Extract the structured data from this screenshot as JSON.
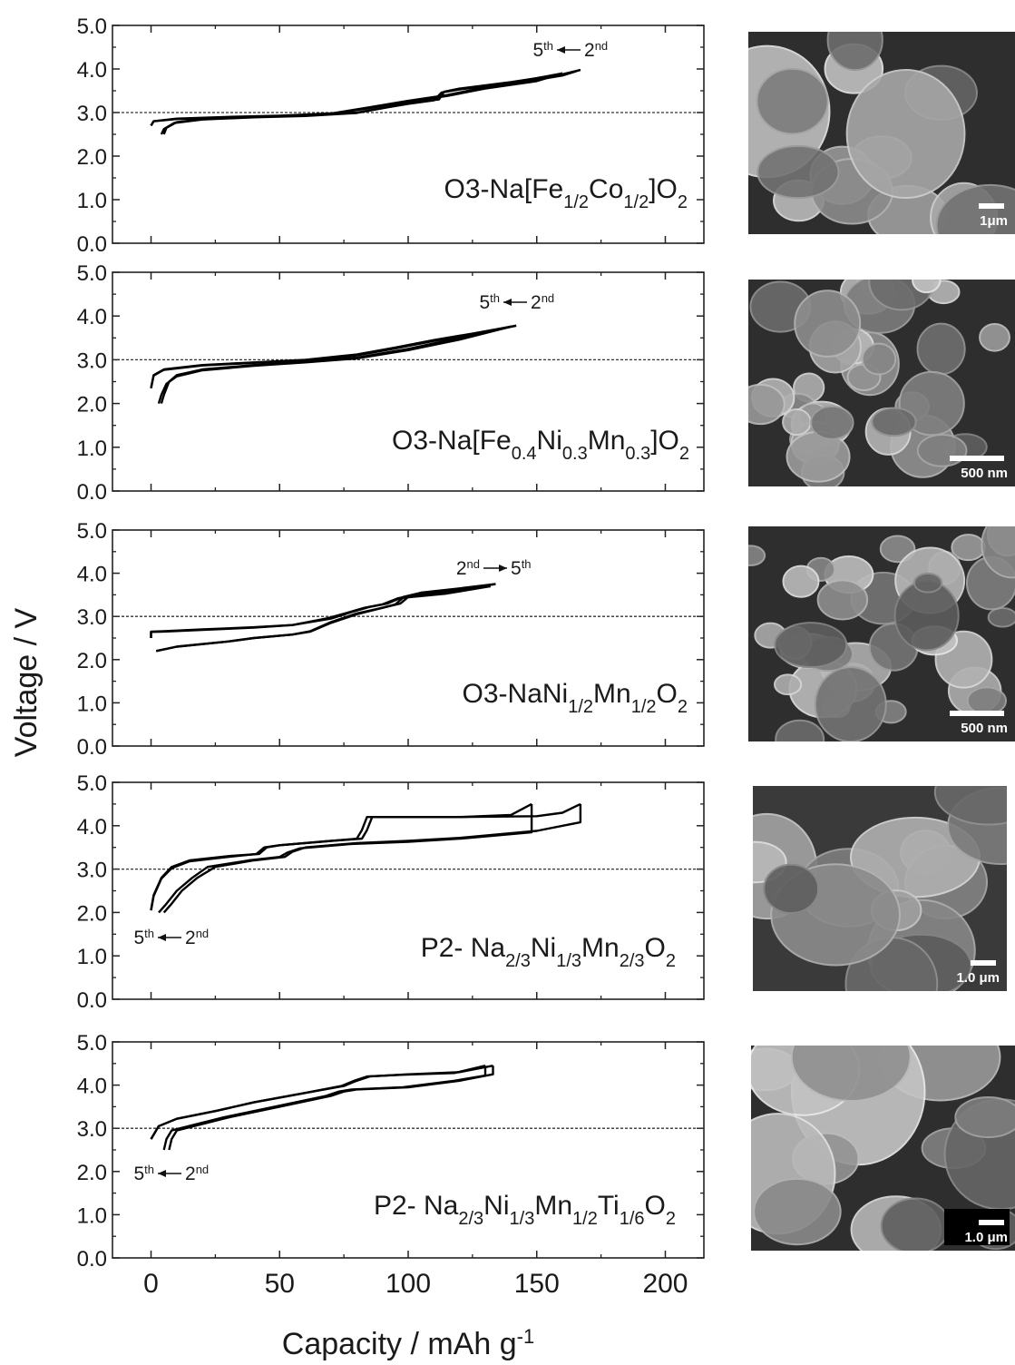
{
  "figure": {
    "y_label": "Voltage / V",
    "x_label": "Capacity / mAh g",
    "x_label_sup": "-1"
  },
  "images": [
    {
      "scale_bar": "1μm"
    },
    {
      "scale_bar": "500 nm"
    },
    {
      "scale_bar": "500 nm"
    },
    {
      "scale_bar": "1.0 μm"
    },
    {
      "scale_bar": "1.0 μm"
    }
  ],
  "chart_data": [
    {
      "type": "line",
      "xlim": [
        -15,
        215
      ],
      "ylim": [
        0,
        5
      ],
      "xticks": [
        0,
        50,
        100,
        150,
        200
      ],
      "xminor": [
        25,
        75,
        125,
        175
      ],
      "xtick_labels": false,
      "yticks": [
        {
          "value": 0,
          "label": "0.0"
        },
        {
          "value": 1,
          "label": "1.0"
        },
        {
          "value": 2,
          "label": "2.0"
        },
        {
          "value": 3,
          "label": "3.0"
        },
        {
          "value": 4,
          "label": "4.0"
        },
        {
          "value": 5,
          "label": "5.0"
        }
      ],
      "yminor": [
        0.5,
        1.5,
        2.5,
        3.5,
        4.5
      ],
      "hline": 3,
      "label": [
        {
          "text": "O3-Na[Fe"
        },
        {
          "sub": "1/2"
        },
        {
          "text": "Co"
        },
        {
          "sub": "1/2"
        },
        {
          "text": "]O"
        },
        {
          "sub": "2"
        }
      ],
      "annotation": {
        "parts": [
          {
            "text": "5"
          },
          {
            "sup": "th"
          },
          {
            "text": "2"
          },
          {
            "sup": "nd"
          }
        ],
        "arrow": "left"
      },
      "series": [
        {
          "color": "#000000",
          "x": [
            5,
            6,
            10,
            20,
            40,
            60,
            80,
            90,
            100,
            112,
            114,
            120,
            140,
            160,
            167
          ],
          "values": [
            2.5,
            2.65,
            2.78,
            2.85,
            2.9,
            2.93,
            3.0,
            3.1,
            3.22,
            3.3,
            3.48,
            3.55,
            3.7,
            3.88,
            3.98
          ]
        },
        {
          "color": "#000000",
          "x": [
            167,
            160,
            150,
            130,
            115,
            100,
            85,
            70,
            50,
            30,
            10,
            1,
            0
          ],
          "values": [
            3.98,
            3.85,
            3.75,
            3.58,
            3.4,
            3.27,
            3.12,
            2.98,
            2.93,
            2.9,
            2.86,
            2.8,
            2.7
          ]
        },
        {
          "color": "#000000",
          "x": [
            4,
            5,
            9,
            20,
            40,
            60,
            80,
            90,
            100,
            110,
            113,
            120,
            140,
            160
          ],
          "values": [
            2.5,
            2.62,
            2.76,
            2.84,
            2.89,
            2.92,
            2.99,
            3.1,
            3.2,
            3.28,
            3.46,
            3.53,
            3.68,
            3.9
          ]
        },
        {
          "color": "#000000",
          "x": [
            160,
            150,
            130,
            115,
            100,
            85,
            70,
            50,
            30,
            10,
            1,
            0
          ],
          "values": [
            3.9,
            3.72,
            3.55,
            3.38,
            3.25,
            3.1,
            2.97,
            2.92,
            2.89,
            2.85,
            2.8,
            2.7
          ]
        }
      ]
    },
    {
      "type": "line",
      "xlim": [
        -15,
        215
      ],
      "ylim": [
        0,
        5
      ],
      "xticks": [
        0,
        50,
        100,
        150,
        200
      ],
      "xminor": [
        25,
        75,
        125,
        175
      ],
      "xtick_labels": false,
      "yticks": [
        {
          "value": 0,
          "label": "0.0"
        },
        {
          "value": 1,
          "label": "1.0"
        },
        {
          "value": 2,
          "label": "2.0"
        },
        {
          "value": 3,
          "label": "3.0"
        },
        {
          "value": 4,
          "label": "4.0"
        },
        {
          "value": 5,
          "label": "5.0"
        }
      ],
      "yminor": [
        0.5,
        1.5,
        2.5,
        3.5,
        4.5
      ],
      "hline": 3,
      "label": [
        {
          "text": "O3-Na[Fe"
        },
        {
          "sub": "0.4"
        },
        {
          "text": "Ni"
        },
        {
          "sub": "0.3"
        },
        {
          "text": "Mn"
        },
        {
          "sub": "0.3"
        },
        {
          "text": "]O"
        },
        {
          "sub": "2"
        }
      ],
      "annotation": {
        "parts": [
          {
            "text": "5"
          },
          {
            "sup": "th"
          },
          {
            "text": "2"
          },
          {
            "sup": "nd"
          }
        ],
        "arrow": "left"
      },
      "series": [
        {
          "color": "#000000",
          "x": [
            4,
            5,
            7,
            10,
            20,
            40,
            60,
            80,
            100,
            120,
            142
          ],
          "values": [
            2.0,
            2.2,
            2.5,
            2.65,
            2.78,
            2.88,
            2.95,
            3.05,
            3.25,
            3.5,
            3.78
          ]
        },
        {
          "color": "#000000",
          "x": [
            142,
            125,
            110,
            95,
            80,
            60,
            40,
            20,
            5,
            1,
            0
          ],
          "values": [
            3.78,
            3.6,
            3.45,
            3.28,
            3.12,
            3.0,
            2.94,
            2.88,
            2.78,
            2.65,
            2.35
          ]
        },
        {
          "color": "#000000",
          "x": [
            3,
            4,
            6,
            10,
            20,
            40,
            60,
            80,
            100,
            120,
            140
          ],
          "values": [
            2.0,
            2.2,
            2.45,
            2.62,
            2.76,
            2.86,
            2.94,
            3.03,
            3.22,
            3.46,
            3.76
          ]
        },
        {
          "color": "#000000",
          "x": [
            140,
            125,
            110,
            95,
            80,
            60,
            40,
            20,
            5,
            1,
            0
          ],
          "values": [
            3.76,
            3.58,
            3.43,
            3.26,
            3.1,
            2.98,
            2.93,
            2.87,
            2.77,
            2.64,
            2.35
          ]
        }
      ]
    },
    {
      "type": "line",
      "xlim": [
        -15,
        215
      ],
      "ylim": [
        0,
        5
      ],
      "xticks": [
        0,
        50,
        100,
        150,
        200
      ],
      "xminor": [
        25,
        75,
        125,
        175
      ],
      "xtick_labels": false,
      "yticks": [
        {
          "value": 0,
          "label": "0.0"
        },
        {
          "value": 1,
          "label": "1.0"
        },
        {
          "value": 2,
          "label": "2.0"
        },
        {
          "value": 3,
          "label": "3.0"
        },
        {
          "value": 4,
          "label": "4.0"
        },
        {
          "value": 5,
          "label": "5.0"
        }
      ],
      "yminor": [
        0.5,
        1.5,
        2.5,
        3.5,
        4.5
      ],
      "hline": 3,
      "label": [
        {
          "text": "O3-NaNi"
        },
        {
          "sub": "1/2"
        },
        {
          "text": "Mn"
        },
        {
          "sub": "1/2"
        },
        {
          "text": "O"
        },
        {
          "sub": "2"
        }
      ],
      "annotation": {
        "parts": [
          {
            "text": "2"
          },
          {
            "sup": "nd"
          },
          {
            "text": "5"
          },
          {
            "sup": "th"
          }
        ],
        "arrow": "right"
      },
      "series": [
        {
          "color": "#000000",
          "x": [
            2,
            10,
            30,
            40,
            55,
            62,
            70,
            80,
            90,
            97,
            100,
            115,
            134
          ],
          "values": [
            2.2,
            2.3,
            2.42,
            2.5,
            2.58,
            2.65,
            2.85,
            3.05,
            3.2,
            3.3,
            3.45,
            3.55,
            3.75
          ]
        },
        {
          "color": "#000000",
          "x": [
            134,
            120,
            105,
            98,
            92,
            85,
            78,
            70,
            55,
            40,
            20,
            5,
            0,
            0
          ],
          "values": [
            3.75,
            3.65,
            3.55,
            3.45,
            3.3,
            3.22,
            3.1,
            2.95,
            2.8,
            2.75,
            2.7,
            2.66,
            2.65,
            2.5
          ]
        },
        {
          "color": "#000000",
          "x": [
            2,
            10,
            30,
            40,
            55,
            62,
            70,
            80,
            90,
            95,
            98,
            115,
            132
          ],
          "values": [
            2.2,
            2.3,
            2.42,
            2.5,
            2.58,
            2.66,
            2.87,
            3.07,
            3.2,
            3.28,
            3.43,
            3.53,
            3.7
          ]
        },
        {
          "color": "#000000",
          "x": [
            132,
            120,
            105,
            96,
            90,
            83,
            76,
            68,
            55,
            40,
            20,
            5,
            0,
            0
          ],
          "values": [
            3.7,
            3.62,
            3.52,
            3.42,
            3.28,
            3.2,
            3.08,
            2.95,
            2.8,
            2.74,
            2.69,
            2.65,
            2.64,
            2.5
          ]
        }
      ]
    },
    {
      "type": "line",
      "xlim": [
        -15,
        215
      ],
      "ylim": [
        0,
        5
      ],
      "xticks": [
        0,
        50,
        100,
        150,
        200
      ],
      "xminor": [
        25,
        75,
        125,
        175
      ],
      "xtick_labels": false,
      "yticks": [
        {
          "value": 0,
          "label": "0.0"
        },
        {
          "value": 1,
          "label": "1.0"
        },
        {
          "value": 2,
          "label": "2.0"
        },
        {
          "value": 3,
          "label": "3.0"
        },
        {
          "value": 4,
          "label": "4.0"
        },
        {
          "value": 5,
          "label": "5.0"
        }
      ],
      "yminor": [
        0.5,
        1.5,
        2.5,
        3.5,
        4.5
      ],
      "hline": 3,
      "label": [
        {
          "text": "P2- Na"
        },
        {
          "sub": "2/3"
        },
        {
          "text": "Ni"
        },
        {
          "sub": "1/3"
        },
        {
          "text": "Mn"
        },
        {
          "sub": "2/3"
        },
        {
          "text": "O"
        },
        {
          "sub": "2"
        }
      ],
      "annotation": {
        "parts": [
          {
            "text": "5"
          },
          {
            "sup": "th"
          },
          {
            "text": "2"
          },
          {
            "sup": "nd"
          }
        ],
        "arrow": "left"
      },
      "series": [
        {
          "color": "#000000",
          "x": [
            5,
            8,
            12,
            18,
            25,
            40,
            52,
            55,
            60,
            80,
            100,
            120,
            150,
            167,
            167
          ],
          "values": [
            2.0,
            2.2,
            2.5,
            2.8,
            3.05,
            3.2,
            3.28,
            3.4,
            3.5,
            3.6,
            3.65,
            3.72,
            3.88,
            4.08,
            4.5
          ]
        },
        {
          "color": "#000000",
          "x": [
            167,
            160,
            150,
            120,
            86,
            84,
            82,
            70,
            50,
            45,
            42,
            30,
            15,
            8,
            4,
            1,
            0
          ],
          "values": [
            4.5,
            4.3,
            4.22,
            4.2,
            4.2,
            3.9,
            3.7,
            3.65,
            3.55,
            3.5,
            3.35,
            3.3,
            3.2,
            3.05,
            2.8,
            2.4,
            2.05
          ]
        },
        {
          "color": "#000000",
          "x": [
            3,
            6,
            10,
            16,
            22,
            38,
            50,
            53,
            58,
            78,
            100,
            120,
            148,
            148
          ],
          "values": [
            2.0,
            2.2,
            2.5,
            2.8,
            3.05,
            3.2,
            3.28,
            3.38,
            3.48,
            3.58,
            3.63,
            3.7,
            3.85,
            4.5
          ]
        },
        {
          "color": "#000000",
          "x": [
            148,
            140,
            120,
            90,
            84,
            82,
            80,
            68,
            50,
            44,
            41,
            30,
            15,
            8,
            4,
            1,
            0
          ],
          "values": [
            4.5,
            4.25,
            4.2,
            4.2,
            4.2,
            3.9,
            3.7,
            3.64,
            3.55,
            3.5,
            3.35,
            3.28,
            3.18,
            3.02,
            2.78,
            2.38,
            2.05
          ]
        }
      ]
    },
    {
      "type": "line",
      "xlim": [
        -15,
        215
      ],
      "ylim": [
        0,
        5
      ],
      "xticks": [
        0,
        50,
        100,
        150,
        200
      ],
      "xminor": [
        25,
        75,
        125,
        175
      ],
      "xtick_labels": true,
      "yticks": [
        {
          "value": 0,
          "label": "0.0"
        },
        {
          "value": 1,
          "label": "1.0"
        },
        {
          "value": 2,
          "label": "2.0"
        },
        {
          "value": 3,
          "label": "3.0"
        },
        {
          "value": 4,
          "label": "4.0"
        },
        {
          "value": 5,
          "label": "5.0"
        }
      ],
      "yminor": [
        0.5,
        1.5,
        2.5,
        3.5,
        4.5
      ],
      "hline": 3,
      "label": [
        {
          "text": "P2- Na"
        },
        {
          "sub": "2/3"
        },
        {
          "text": "Ni"
        },
        {
          "sub": "1/3"
        },
        {
          "text": "Mn"
        },
        {
          "sub": "1/2"
        },
        {
          "text": "Ti"
        },
        {
          "sub": "1/6"
        },
        {
          "text": "O"
        },
        {
          "sub": "2"
        }
      ],
      "annotation": {
        "parts": [
          {
            "text": "5"
          },
          {
            "sup": "th"
          },
          {
            "text": "2"
          },
          {
            "sup": "nd"
          }
        ],
        "arrow": "left"
      },
      "series": [
        {
          "color": "#000000",
          "x": [
            7,
            8,
            10,
            20,
            30,
            50,
            70,
            75,
            80,
            100,
            120,
            133,
            133
          ],
          "values": [
            2.5,
            2.75,
            2.95,
            3.1,
            3.25,
            3.5,
            3.75,
            3.85,
            3.9,
            3.95,
            4.1,
            4.25,
            4.45
          ]
        },
        {
          "color": "#000000",
          "x": [
            133,
            120,
            100,
            85,
            80,
            75,
            60,
            40,
            25,
            10,
            3,
            0
          ],
          "values": [
            4.45,
            4.3,
            4.25,
            4.2,
            4.1,
            3.98,
            3.82,
            3.6,
            3.4,
            3.22,
            3.05,
            2.75
          ]
        },
        {
          "color": "#000000",
          "x": [
            5,
            6,
            8,
            18,
            28,
            48,
            68,
            73,
            78,
            98,
            118,
            130,
            130
          ],
          "values": [
            2.5,
            2.75,
            2.95,
            3.1,
            3.25,
            3.5,
            3.75,
            3.85,
            3.9,
            3.95,
            4.1,
            4.22,
            4.45
          ]
        },
        {
          "color": "#000000",
          "x": [
            130,
            118,
            98,
            84,
            79,
            74,
            60,
            40,
            25,
            10,
            3,
            0
          ],
          "values": [
            4.45,
            4.28,
            4.24,
            4.2,
            4.1,
            3.98,
            3.82,
            3.6,
            3.4,
            3.22,
            3.05,
            2.75
          ]
        }
      ]
    }
  ]
}
